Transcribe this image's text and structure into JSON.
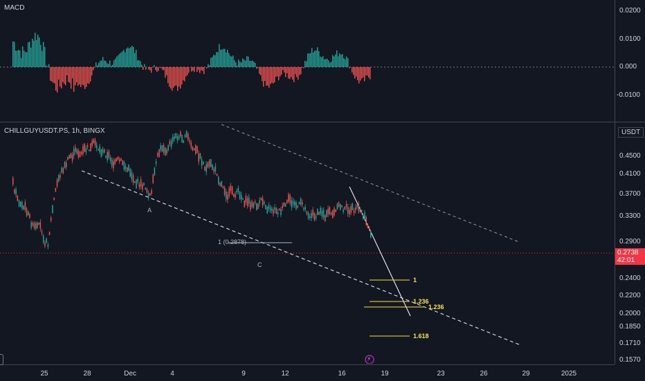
{
  "macd": {
    "title": "MACD",
    "axis_ticks": [
      "0.0200",
      "0.0100",
      "0.000",
      "-0.0100"
    ]
  },
  "price": {
    "symbol_line": "CHILLGUYUSDT.PS, 1h, BINGX",
    "currency": "USDT",
    "axis_ticks": [
      "0.4500",
      "0.4100",
      "0.3700",
      "0.3300",
      "0.2900",
      "0.2600",
      "0.2400",
      "0.2200",
      "0.2000",
      "0.1850",
      "0.1710",
      "0.1570"
    ],
    "last_price": "0.2738",
    "countdown": "42:01",
    "labels": {
      "a": "A",
      "c": "C",
      "fib_anchor": "1 (0.2878)"
    },
    "fib_labels": [
      "1",
      "1.236",
      "1.236",
      "1.618"
    ]
  },
  "time_axis": [
    "25",
    "28",
    "Dec",
    "4",
    "9",
    "12",
    "16",
    "19",
    "23",
    "26",
    "29",
    "2025"
  ],
  "colors": {
    "bull": "#26a69a",
    "bear": "#ef5350",
    "fib": "#f5e342",
    "price_line": "#f23645",
    "bg": "#131722"
  }
}
